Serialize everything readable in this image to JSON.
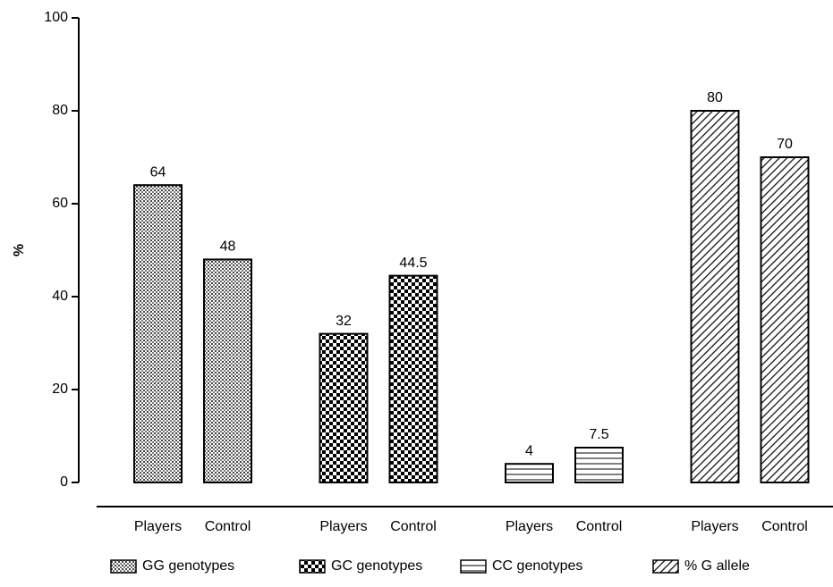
{
  "chart_data": {
    "type": "bar",
    "y_label": "%",
    "categories": [
      "Players",
      "Control"
    ],
    "series": [
      {
        "name": "GG genotypes",
        "color": "#000000",
        "pattern": "crosshatch",
        "values": [
          64,
          48
        ]
      },
      {
        "name": "GC genotypes",
        "color": "#000000",
        "pattern": "checker",
        "values": [
          32,
          44.5
        ]
      },
      {
        "name": "CC genotypes",
        "color": "#000000",
        "pattern": "hlines",
        "values": [
          4,
          7.5
        ]
      },
      {
        "name": "% G allele",
        "color": "#000000",
        "pattern": "diagonal",
        "values": [
          80,
          70
        ]
      }
    ],
    "ylim": [
      0,
      100
    ],
    "yticks": [
      0,
      20,
      40,
      60,
      80,
      100
    ]
  }
}
